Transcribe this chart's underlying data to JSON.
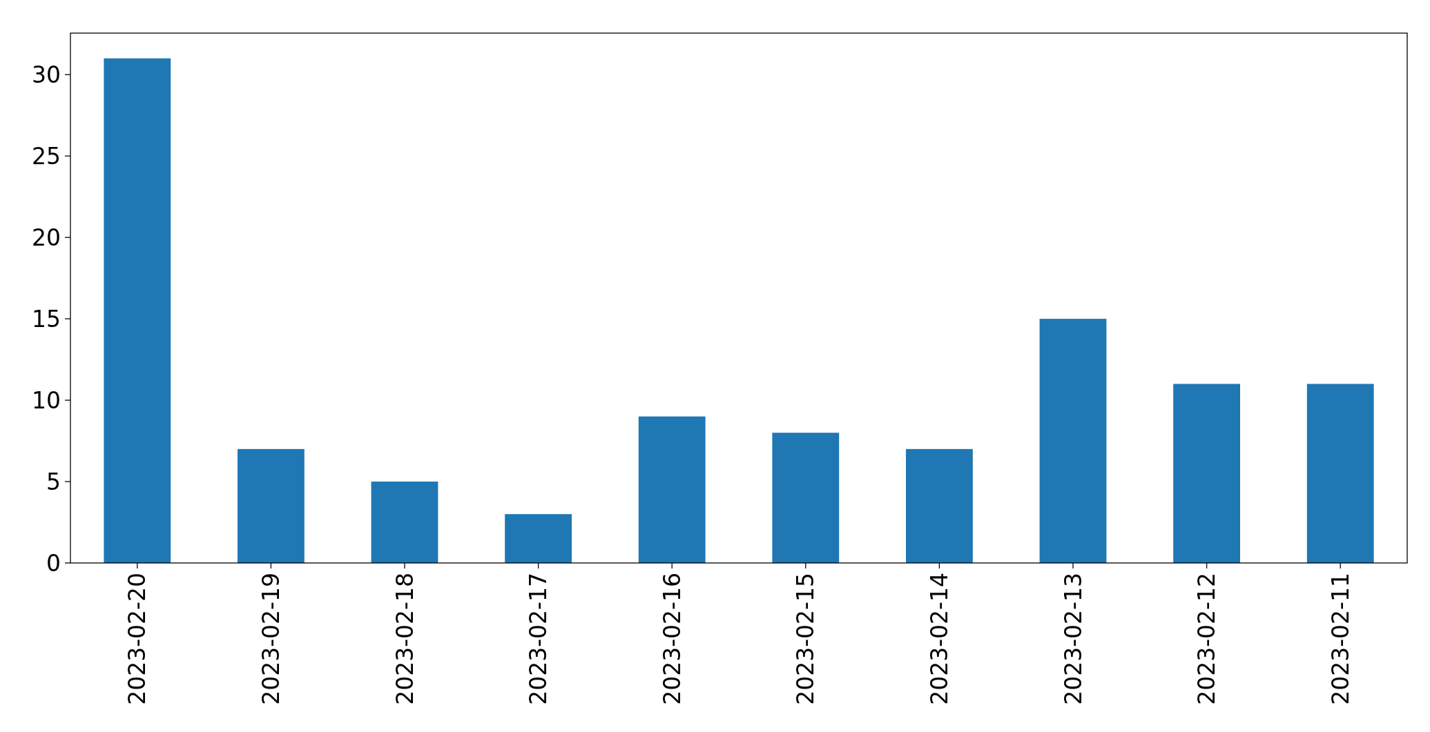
{
  "chart_data": {
    "type": "bar",
    "categories": [
      "2023-02-20",
      "2023-02-19",
      "2023-02-18",
      "2023-02-17",
      "2023-02-16",
      "2023-02-15",
      "2023-02-14",
      "2023-02-13",
      "2023-02-12",
      "2023-02-11"
    ],
    "values": [
      31,
      7,
      5,
      3,
      9,
      8,
      7,
      15,
      11,
      11
    ],
    "color": "#1f77b4",
    "ylim": [
      0,
      32.55
    ],
    "yticks": [
      0,
      5,
      10,
      15,
      20,
      25,
      30
    ],
    "grid": false
  }
}
